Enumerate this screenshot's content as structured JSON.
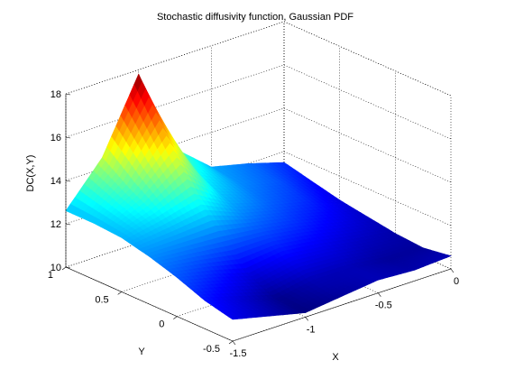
{
  "chart_data": {
    "type": "surface",
    "title": "Stochastic diffusivity function, Gaussian PDF",
    "xlabel": "X",
    "ylabel": "Y",
    "zlabel": "DC(X,Y)",
    "xlim": [
      -1.5,
      0
    ],
    "ylim": [
      -0.5,
      1
    ],
    "zlim": [
      10,
      18
    ],
    "xticks": [
      -1.5,
      -1,
      -0.5,
      0
    ],
    "yticks": [
      -0.5,
      0,
      0.5,
      1
    ],
    "zticks": [
      10,
      12,
      14,
      16,
      18
    ],
    "xtick_labels": [
      "-1.5",
      "-1",
      "-0.5",
      "0"
    ],
    "ytick_labels": [
      "-0.5",
      "0",
      "0.5",
      "1"
    ],
    "ztick_labels": [
      "10",
      "12",
      "14",
      "16",
      "18"
    ],
    "colormap": "jet",
    "grid": true,
    "x": [
      -1.5,
      -1.25,
      -1.0,
      -0.75,
      -0.5,
      -0.25,
      0.0
    ],
    "y": [
      1.0,
      0.75,
      0.5,
      0.25,
      0.0,
      -0.25,
      -0.5
    ],
    "z": [
      [
        12.6,
        14.5,
        17.8,
        13.8,
        12.4,
        12.0,
        11.5
      ],
      [
        12.6,
        13.6,
        15.5,
        13.0,
        12.2,
        11.8,
        11.2
      ],
      [
        12.5,
        12.9,
        13.4,
        12.4,
        11.9,
        11.5,
        10.9
      ],
      [
        12.2,
        12.1,
        12.0,
        11.8,
        11.5,
        11.1,
        10.7
      ],
      [
        11.8,
        11.4,
        10.9,
        11.2,
        11.0,
        10.7,
        10.5
      ],
      [
        11.3,
        10.8,
        10.3,
        10.6,
        10.6,
        10.4,
        10.4
      ],
      [
        11.0,
        10.6,
        10.2,
        10.4,
        10.6,
        10.5,
        10.6
      ]
    ]
  }
}
